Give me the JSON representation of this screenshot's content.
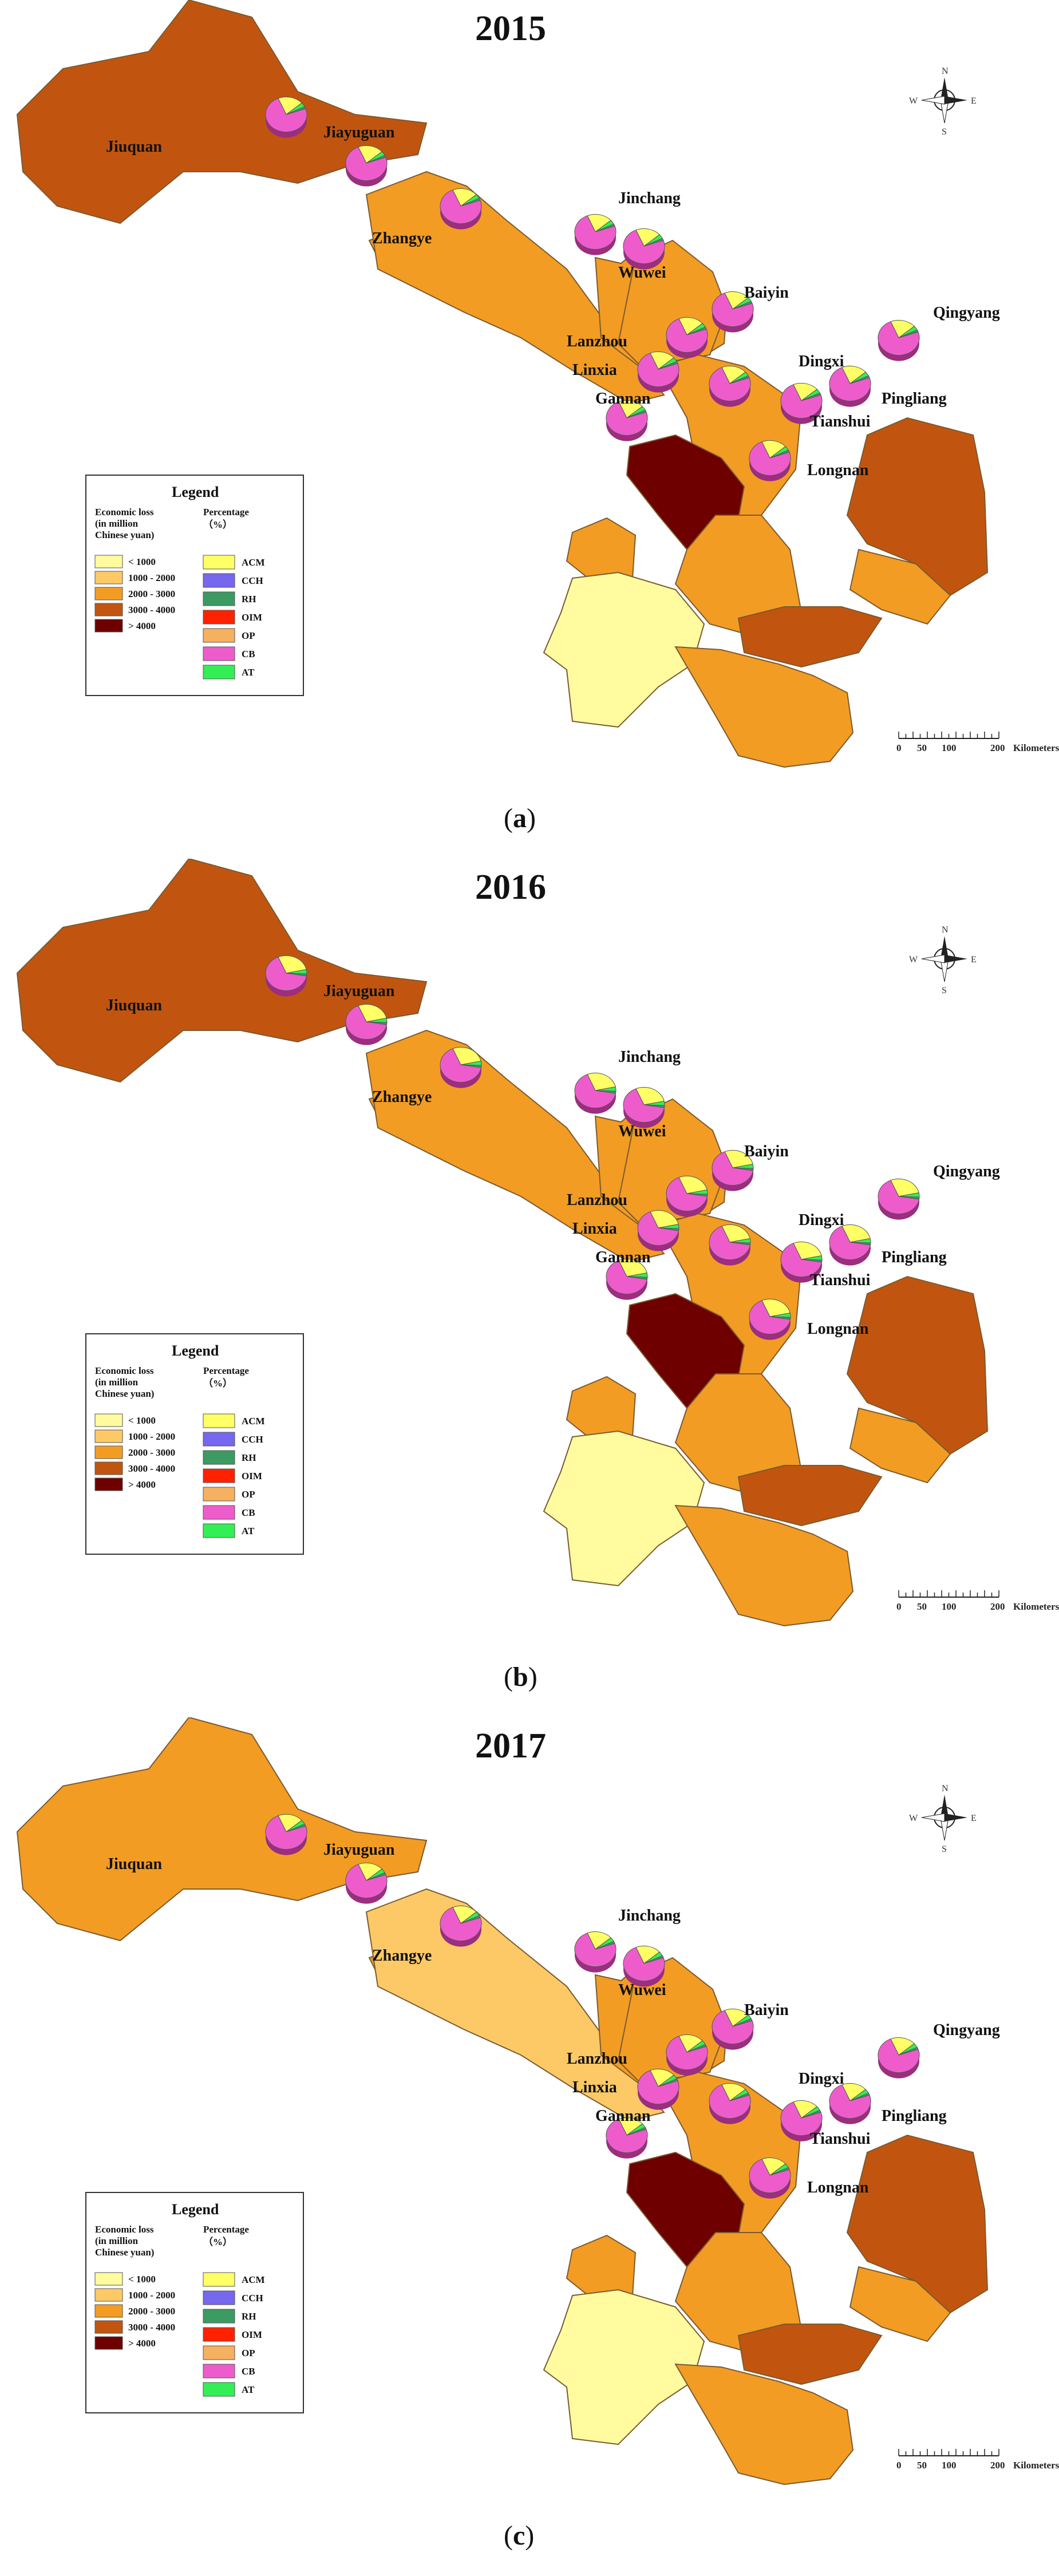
{
  "colors": {
    "lt1000": "#fffb9e",
    "c1000_2000": "#fcc966",
    "c2000_3000": "#f39c23",
    "c3000_4000": "#c15510",
    "gt4000": "#6e0000",
    "ACM": "#ffff66",
    "CCH": "#7766ee",
    "RH": "#3c9b62",
    "OIM": "#ff2200",
    "OP": "#f5b060",
    "CB": "#ee5ccc",
    "AT": "#33ee55"
  },
  "legend": {
    "title": "Legend",
    "loss_heading": [
      "Economic loss",
      "(in  million",
      "Chinese yuan)"
    ],
    "pct_heading": [
      "Percentage",
      "（%）"
    ],
    "classes": [
      "< 1000",
      "1000 - 2000",
      "2000 - 3000",
      "3000 - 4000",
      "> 4000"
    ],
    "categories": [
      "ACM",
      "CCH",
      "RH",
      "OIM",
      "OP",
      "CB",
      "AT"
    ]
  },
  "compass": {
    "n": "N",
    "s": "S",
    "w": "W",
    "e": "E"
  },
  "scalebar": {
    "ticks": [
      "0",
      "50",
      "100",
      "200"
    ],
    "unit": "Kilometers"
  },
  "panels": [
    {
      "year": "2015",
      "caption": "a",
      "classes": {
        "Jiuquan": "3000-4000",
        "Jiayuguan": "2000-3000",
        "Zhangye": "2000-3000",
        "Jinchang": "2000-3000",
        "Wuwei": "2000-3000",
        "Baiyin": "2000-3000",
        "Lanzhou": ">4000",
        "Linxia": "2000-3000",
        "Dingxi": "2000-3000",
        "Qingyang": "3000-4000",
        "Pingliang": "2000-3000",
        "Tianshui": "3000-4000",
        "Gannan": "<1000",
        "Longnan": "2000-3000"
      }
    },
    {
      "year": "2016",
      "caption": "b",
      "classes": {
        "Jiuquan": "3000-4000",
        "Jiayuguan": "2000-3000",
        "Zhangye": "2000-3000",
        "Jinchang": "2000-3000",
        "Wuwei": "2000-3000",
        "Baiyin": "2000-3000",
        "Lanzhou": ">4000",
        "Linxia": "2000-3000",
        "Dingxi": "2000-3000",
        "Qingyang": "3000-4000",
        "Pingliang": "2000-3000",
        "Tianshui": "3000-4000",
        "Gannan": "<1000",
        "Longnan": "2000-3000"
      }
    },
    {
      "year": "2017",
      "caption": "c",
      "classes": {
        "Jiuquan": "2000-3000",
        "Jiayuguan": "2000-3000",
        "Zhangye": "1000-2000",
        "Jinchang": "2000-3000",
        "Wuwei": "2000-3000",
        "Baiyin": "2000-3000",
        "Lanzhou": ">4000",
        "Linxia": "2000-3000",
        "Dingxi": "2000-3000",
        "Qingyang": "3000-4000",
        "Pingliang": "2000-3000",
        "Tianshui": "3000-4000",
        "Gannan": "<1000",
        "Longnan": "2000-3000"
      }
    }
  ],
  "cities": [
    "Jiuquan",
    "Jiayuguan",
    "Zhangye",
    "Jinchang",
    "Wuwei",
    "Baiyin",
    "Lanzhou",
    "Linxia",
    "Dingxi",
    "Qingyang",
    "Pingliang",
    "Tianshui",
    "Gannan",
    "Longnan"
  ]
}
